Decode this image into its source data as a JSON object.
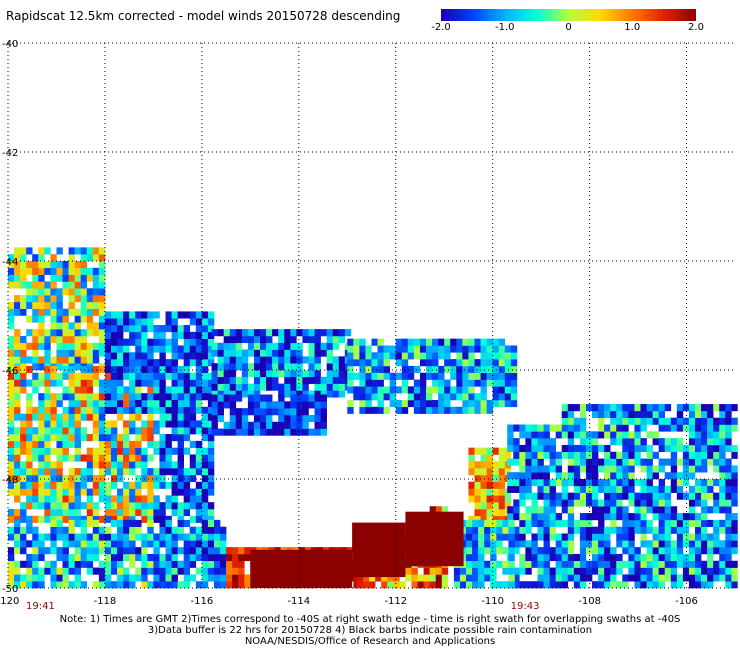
{
  "chart_data": {
    "type": "heatmap",
    "title": "Rapidscat 12.5km corrected - model winds 20150728 descending",
    "colorbar": {
      "range": [
        -2.0,
        2.0
      ],
      "ticks": [
        {
          "value": -2.0,
          "label": "-2.0"
        },
        {
          "value": -1.0,
          "label": "-1.0"
        },
        {
          "value": 0,
          "label": "0"
        },
        {
          "value": 1.0,
          "label": "1.0"
        },
        {
          "value": 2.0,
          "label": "2.0"
        }
      ],
      "colors": [
        "#1a00b4",
        "#0040ff",
        "#00b4ff",
        "#00ffd8",
        "#b4ff3c",
        "#ffd800",
        "#ff7800",
        "#e61e00",
        "#8b0000"
      ]
    },
    "xlim": [
      -120,
      -105
    ],
    "ylim": [
      -50,
      -40
    ],
    "x_ticks": [
      {
        "value": -120,
        "label": "-120"
      },
      {
        "value": -118,
        "label": "-118"
      },
      {
        "value": -116,
        "label": "-116"
      },
      {
        "value": -114,
        "label": "-114"
      },
      {
        "value": -112,
        "label": "-112"
      },
      {
        "value": -110,
        "label": "-110"
      },
      {
        "value": -108,
        "label": "-108"
      },
      {
        "value": -106,
        "label": "-106"
      }
    ],
    "y_ticks": [
      {
        "value": -40,
        "label": "-40"
      },
      {
        "value": -42,
        "label": "-42"
      },
      {
        "value": -44,
        "label": "-44"
      },
      {
        "value": -46,
        "label": "-46"
      },
      {
        "value": -48,
        "label": "-48"
      },
      {
        "value": -50,
        "label": "-50"
      }
    ],
    "grid": true,
    "time_labels": [
      {
        "lon": -120,
        "label": "19:41"
      },
      {
        "lon": -110,
        "label": "19:43"
      }
    ],
    "swath_regions": [
      {
        "lon": [
          -120.0,
          -118.0
        ],
        "lat": [
          -46.0,
          -43.8
        ],
        "bias": -0.2,
        "spread": 1.4
      },
      {
        "lon": [
          -120.0,
          -117.0
        ],
        "lat": [
          -48.8,
          -46.0
        ],
        "bias": 0.0,
        "spread": 1.5
      },
      {
        "lon": [
          -118.0,
          -115.8
        ],
        "lat": [
          -46.8,
          -45.0
        ],
        "bias": -1.3,
        "spread": 0.9
      },
      {
        "lon": [
          -115.8,
          -113.0
        ],
        "lat": [
          -46.5,
          -45.3
        ],
        "bias": -1.2,
        "spread": 1.0
      },
      {
        "lon": [
          -113.0,
          -109.5
        ],
        "lat": [
          -46.8,
          -45.5
        ],
        "bias": -1.0,
        "spread": 1.0
      },
      {
        "lon": [
          -117.0,
          -115.8
        ],
        "lat": [
          -48.8,
          -46.5
        ],
        "bias": -1.3,
        "spread": 1.0
      },
      {
        "lon": [
          -115.8,
          -113.5
        ],
        "lat": [
          -47.2,
          -46.5
        ],
        "bias": -1.6,
        "spread": 0.7
      },
      {
        "lon": [
          -120.0,
          -117.0
        ],
        "lat": [
          -50.0,
          -48.8
        ],
        "bias": -0.8,
        "spread": 1.2
      },
      {
        "lon": [
          -117.0,
          -115.5
        ],
        "lat": [
          -50.0,
          -48.8
        ],
        "bias": -1.2,
        "spread": 1.0
      },
      {
        "lon": [
          -115.5,
          -112.8
        ],
        "lat": [
          -50.0,
          -49.3
        ],
        "bias": 1.5,
        "spread": 0.6
      },
      {
        "lon": [
          -112.8,
          -111.0
        ],
        "lat": [
          -50.0,
          -48.6
        ],
        "bias": 0.9,
        "spread": 1.2
      },
      {
        "lon": [
          -110.5,
          -109.7
        ],
        "lat": [
          -48.8,
          -47.5
        ],
        "bias": 0.6,
        "spread": 1.0
      },
      {
        "lon": [
          -109.7,
          -105.0
        ],
        "lat": [
          -50.0,
          -46.7
        ],
        "bias": -1.1,
        "spread": 1.1
      },
      {
        "lon": [
          -110.8,
          -109.6
        ],
        "lat": [
          -50.0,
          -48.8
        ],
        "bias": -0.8,
        "spread": 1.0
      }
    ],
    "saturated_regions": [
      {
        "lon": [
          -115.0,
          -112.9
        ],
        "lat": [
          -50.0,
          -49.3
        ],
        "value": 2.0
      },
      {
        "lon": [
          -112.9,
          -111.8
        ],
        "lat": [
          -49.8,
          -48.8
        ],
        "value": 2.0
      },
      {
        "lon": [
          -111.8,
          -110.6
        ],
        "lat": [
          -49.6,
          -48.6
        ],
        "value": 2.0
      }
    ],
    "data_gaps": [
      {
        "lon": [
          -115.4,
          -111.4
        ],
        "lat": [
          -48.9,
          -47.2
        ]
      },
      {
        "lon": [
          -111.9,
          -110.6
        ],
        "lat": [
          -48.3,
          -47.3
        ]
      },
      {
        "lon": [
          -110.0,
          -108.6
        ],
        "lat": [
          -47.0,
          -46.7
        ]
      }
    ]
  },
  "footer": {
    "line1": "Note: 1) Times are GMT 2)Times correspond to -40S at right swath edge - time is right swath for overlapping swaths at -40S",
    "line2": "3)Data buffer is 22 hrs for 20150728 4) Black barbs indicate possible rain contamination",
    "line3": "NOAA/NESDIS/Office of Research and Applications"
  }
}
